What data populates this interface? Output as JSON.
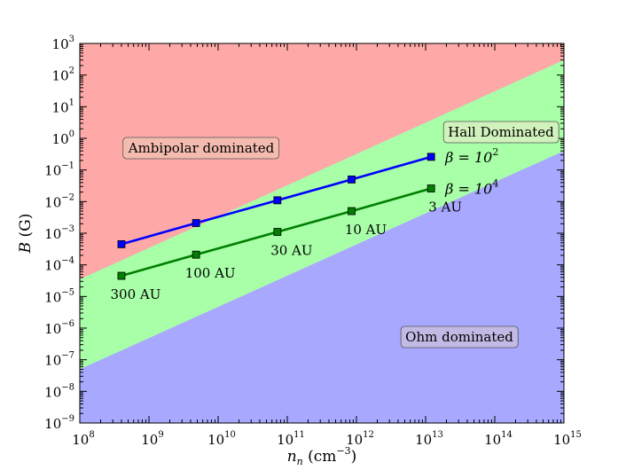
{
  "chart_data": {
    "type": "line",
    "xscale": "log",
    "yscale": "log",
    "xlim": [
      100000000.0,
      1000000000000000.0
    ],
    "ylim": [
      1e-09,
      1000.0
    ],
    "xlabel": "n_n (cm^-3)",
    "ylabel": "B (G)",
    "x_ticks": [
      {
        "value": 100000000.0,
        "base": "10",
        "exp": "8"
      },
      {
        "value": 1000000000.0,
        "base": "10",
        "exp": "9"
      },
      {
        "value": 10000000000.0,
        "base": "10",
        "exp": "10"
      },
      {
        "value": 100000000000.0,
        "base": "10",
        "exp": "11"
      },
      {
        "value": 1000000000000.0,
        "base": "10",
        "exp": "12"
      },
      {
        "value": 10000000000000.0,
        "base": "10",
        "exp": "13"
      },
      {
        "value": 100000000000000.0,
        "base": "10",
        "exp": "14"
      },
      {
        "value": 1000000000000000.0,
        "base": "10",
        "exp": "15"
      }
    ],
    "y_ticks": [
      {
        "value": 1e-09,
        "base": "10",
        "exp": "−9"
      },
      {
        "value": 1e-08,
        "base": "10",
        "exp": "−8"
      },
      {
        "value": 1e-07,
        "base": "10",
        "exp": "−7"
      },
      {
        "value": 1e-06,
        "base": "10",
        "exp": "−6"
      },
      {
        "value": 1e-05,
        "base": "10",
        "exp": "−5"
      },
      {
        "value": 0.0001,
        "base": "10",
        "exp": "−4"
      },
      {
        "value": 0.001,
        "base": "10",
        "exp": "−3"
      },
      {
        "value": 0.01,
        "base": "10",
        "exp": "−2"
      },
      {
        "value": 0.1,
        "base": "10",
        "exp": "−1"
      },
      {
        "value": 1,
        "base": "10",
        "exp": "0"
      },
      {
        "value": 10,
        "base": "10",
        "exp": "1"
      },
      {
        "value": 100,
        "base": "10",
        "exp": "2"
      },
      {
        "value": 1000,
        "base": "10",
        "exp": "3"
      }
    ],
    "regions": [
      {
        "name": "Ambipolar dominated",
        "color": "#ffa8a8",
        "boundary": [
          [
            100000000.0,
            3.5e-05
          ],
          [
            1000000000000000.0,
            300
          ]
        ]
      },
      {
        "name": "Hall Dominated",
        "color": "#a8ffa8",
        "boundary": [
          [
            100000000.0,
            5e-08
          ],
          [
            1000000000000000.0,
            0.4
          ]
        ]
      },
      {
        "name": "Ohm dominated",
        "color": "#a8a8ff"
      }
    ],
    "series": [
      {
        "name": "β = 10^2",
        "label_base": "β = 10",
        "label_exp": "2",
        "color": "#0000ff",
        "x": [
          400000000.0,
          4800000000.0,
          72000000000.0,
          850000000000.0,
          12000000000000.0
        ],
        "y": [
          0.00045,
          0.0021,
          0.011,
          0.05,
          0.26
        ]
      },
      {
        "name": "β = 10^4",
        "label_base": "β = 10",
        "label_exp": "4",
        "color": "#007f00",
        "x": [
          400000000.0,
          4800000000.0,
          72000000000.0,
          850000000000.0,
          12000000000000.0
        ],
        "y": [
          4.5e-05,
          0.00021,
          0.0011,
          0.005,
          0.026
        ]
      }
    ],
    "point_labels": [
      "300 AU",
      "100 AU",
      "30 AU",
      "10 AU",
      "3 AU"
    ],
    "grid": false
  }
}
